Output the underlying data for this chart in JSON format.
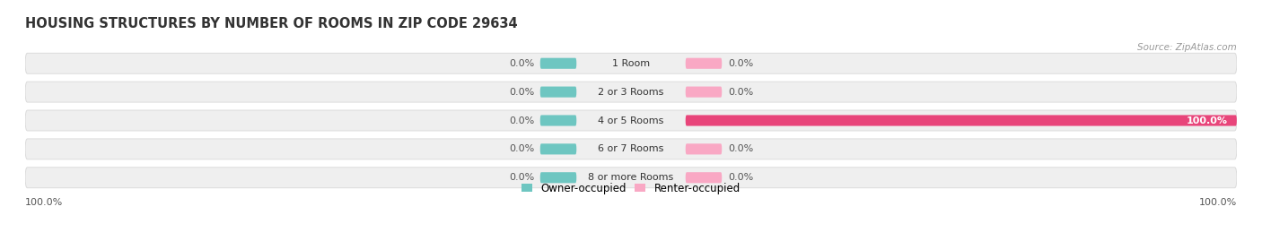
{
  "title": "HOUSING STRUCTURES BY NUMBER OF ROOMS IN ZIP CODE 29634",
  "source": "Source: ZipAtlas.com",
  "categories": [
    "1 Room",
    "2 or 3 Rooms",
    "4 or 5 Rooms",
    "6 or 7 Rooms",
    "8 or more Rooms"
  ],
  "owner_values": [
    0.0,
    0.0,
    0.0,
    0.0,
    0.0
  ],
  "renter_values": [
    0.0,
    0.0,
    100.0,
    0.0,
    0.0
  ],
  "owner_color": "#6ec6c1",
  "renter_color_full": "#e8457a",
  "renter_color_stub": "#f9a8c4",
  "row_bg_color": "#efefef",
  "row_border_color": "#d8d8d8",
  "owner_label": "Owner-occupied",
  "renter_label": "Renter-occupied",
  "bottom_left_label": "100.0%",
  "bottom_right_label": "100.0%",
  "title_fontsize": 10.5,
  "label_fontsize": 8,
  "cat_fontsize": 8,
  "source_fontsize": 7.5
}
